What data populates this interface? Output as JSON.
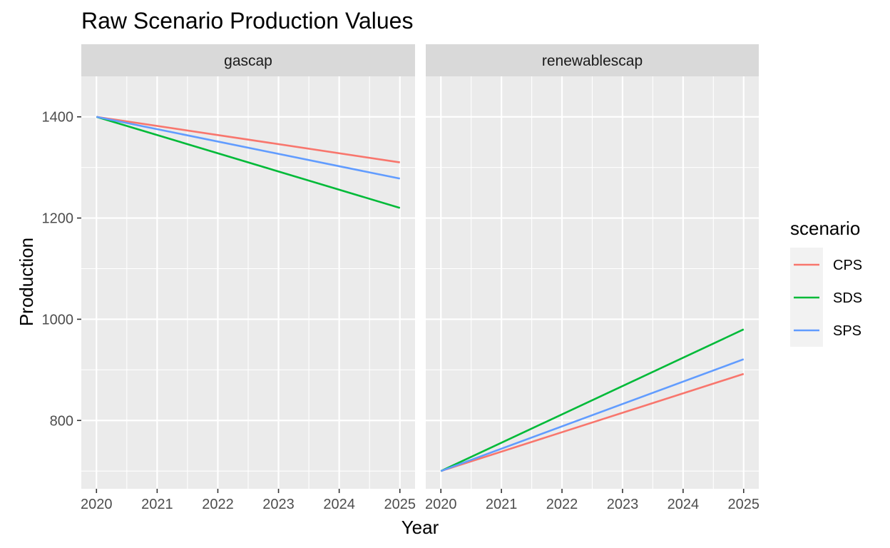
{
  "chart_data": {
    "type": "line",
    "title": "Raw Scenario Production Values",
    "xlabel": "Year",
    "ylabel": "Production",
    "x": [
      2020,
      2025
    ],
    "xticks": [
      2020,
      2021,
      2022,
      2023,
      2024,
      2025
    ],
    "yticks": [
      800,
      1000,
      1200,
      1400
    ],
    "xlim": [
      2019.75,
      2025.25
    ],
    "ylim": [
      665,
      1480
    ],
    "grid": true,
    "legend": {
      "title": "scenario",
      "position": "right"
    },
    "colors": {
      "CPS": "#F8766D",
      "SDS": "#00BA38",
      "SPS": "#619CFF"
    },
    "panels": [
      {
        "name": "gascap",
        "series": [
          {
            "name": "CPS",
            "values": [
              1400,
              1310
            ]
          },
          {
            "name": "SDS",
            "values": [
              1400,
              1220
            ]
          },
          {
            "name": "SPS",
            "values": [
              1400,
              1278
            ]
          }
        ]
      },
      {
        "name": "renewablescap",
        "series": [
          {
            "name": "CPS",
            "values": [
              700,
              892
            ]
          },
          {
            "name": "SDS",
            "values": [
              700,
              980
            ]
          },
          {
            "name": "SPS",
            "values": [
              700,
              921
            ]
          }
        ]
      }
    ]
  }
}
